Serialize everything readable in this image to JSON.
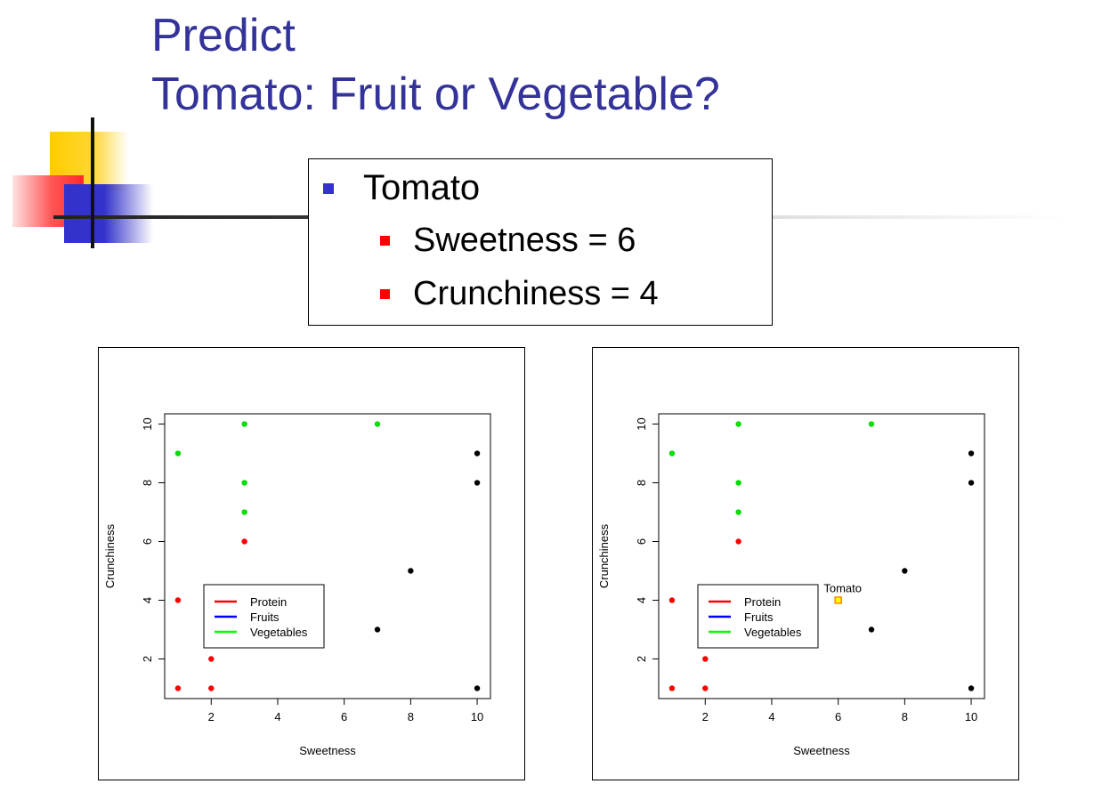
{
  "slide": {
    "title_line1": "Predict",
    "title_line2": "Tomato: Fruit or Vegetable?",
    "title_color": "#333399"
  },
  "info": {
    "item": "Tomato",
    "sub_items": [
      "Sweetness = 6",
      "Crunchiness = 4"
    ],
    "bullet_color_main": "#3333cc",
    "bullet_color_sub": "#ff0000"
  },
  "chart_data": [
    {
      "type": "scatter",
      "title": "",
      "xlabel": "Sweetness",
      "ylabel": "Crunchiness",
      "xlim": [
        0.6,
        10.4
      ],
      "ylim": [
        0.65,
        10.35
      ],
      "xticks": [
        2,
        4,
        6,
        8,
        10
      ],
      "yticks": [
        2,
        4,
        6,
        8,
        10
      ],
      "grid": false,
      "legend": {
        "position": "bottom-left",
        "entries": [
          {
            "label": "Protein",
            "color": "#ff0000"
          },
          {
            "label": "Fruits",
            "color": "#0000ff"
          },
          {
            "label": "Vegetables",
            "color": "#00ff00"
          }
        ]
      },
      "series": [
        {
          "color": "#ff0000",
          "points": [
            [
              1,
              1
            ],
            [
              2,
              1
            ],
            [
              2,
              2
            ],
            [
              1,
              4
            ],
            [
              3,
              6
            ]
          ]
        },
        {
          "color": "#00dd00",
          "points": [
            [
              1,
              9
            ],
            [
              3,
              10
            ],
            [
              3,
              8
            ],
            [
              3,
              7
            ],
            [
              7,
              10
            ]
          ]
        },
        {
          "color": "#000000",
          "points": [
            [
              10,
              9
            ],
            [
              10,
              8
            ],
            [
              8,
              5
            ],
            [
              7,
              3
            ],
            [
              10,
              1
            ]
          ]
        }
      ],
      "annotations": []
    },
    {
      "type": "scatter",
      "title": "",
      "xlabel": "Sweetness",
      "ylabel": "Crunchiness",
      "xlim": [
        0.6,
        10.4
      ],
      "ylim": [
        0.65,
        10.35
      ],
      "xticks": [
        2,
        4,
        6,
        8,
        10
      ],
      "yticks": [
        2,
        4,
        6,
        8,
        10
      ],
      "grid": false,
      "legend": {
        "position": "bottom-left",
        "entries": [
          {
            "label": "Protein",
            "color": "#ff0000"
          },
          {
            "label": "Fruits",
            "color": "#0000ff"
          },
          {
            "label": "Vegetables",
            "color": "#00ff00"
          }
        ]
      },
      "series": [
        {
          "color": "#ff0000",
          "points": [
            [
              1,
              1
            ],
            [
              2,
              1
            ],
            [
              2,
              2
            ],
            [
              1,
              4
            ],
            [
              3,
              6
            ]
          ]
        },
        {
          "color": "#00dd00",
          "points": [
            [
              1,
              9
            ],
            [
              3,
              10
            ],
            [
              3,
              8
            ],
            [
              3,
              7
            ],
            [
              7,
              10
            ]
          ]
        },
        {
          "color": "#000000",
          "points": [
            [
              10,
              9
            ],
            [
              10,
              8
            ],
            [
              8,
              5
            ],
            [
              7,
              3
            ],
            [
              10,
              1
            ]
          ]
        }
      ],
      "annotations": [
        {
          "label": "Tomato",
          "x": 6,
          "y": 4,
          "marker": "square",
          "fill": "#ffff00",
          "stroke": "#ff8800"
        }
      ]
    }
  ]
}
